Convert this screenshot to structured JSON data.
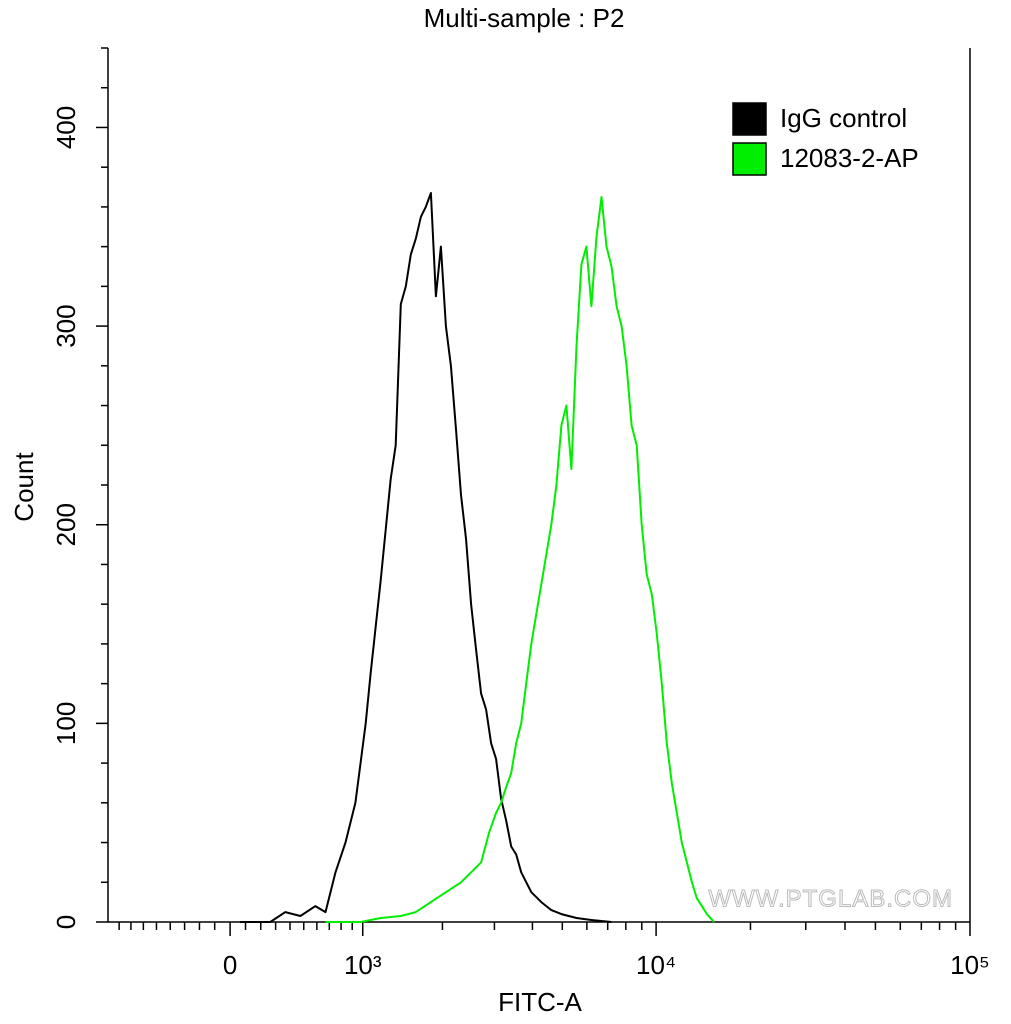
{
  "chart_data": {
    "type": "line",
    "title": "Multi-sample : P2",
    "xlabel": "FITC-A",
    "ylabel": "Count",
    "xscale": "biexponential",
    "xlim": [
      -900,
      100000
    ],
    "xticks": [
      0,
      {
        "value": 1000,
        "label": "10³"
      },
      {
        "value": 10000,
        "label": "10⁴"
      },
      {
        "value": 100000,
        "label": "10⁵"
      }
    ],
    "xminor_ticks": [
      -800,
      -700,
      -600,
      -500,
      -400,
      -300,
      -200,
      -100,
      100,
      200,
      300,
      400,
      500,
      600,
      700,
      800,
      900,
      2000,
      3000,
      4000,
      5000,
      6000,
      7000,
      8000,
      9000,
      20000,
      30000,
      40000,
      50000,
      60000,
      70000,
      80000,
      90000
    ],
    "ylim": [
      0,
      440
    ],
    "yticks": [
      0,
      100,
      200,
      300,
      400
    ],
    "yminor_ticks": [
      20,
      40,
      60,
      80,
      120,
      140,
      160,
      180,
      220,
      240,
      260,
      280,
      320,
      340,
      360,
      380,
      420,
      440
    ],
    "legend": "upper right",
    "watermark": "WWW.PTGLAB.COM",
    "series": [
      {
        "name": "IgG control",
        "color": "#000000",
        "x": [
          65,
          264,
          367,
          475,
          589,
          669,
          752,
          839,
          930,
          1029,
          1079,
          1185,
          1296,
          1355,
          1416,
          1478,
          1543,
          1609,
          1678,
          1748,
          1822,
          1898,
          1975,
          2056,
          2140,
          2227,
          2317,
          2410,
          2506,
          2605,
          2708,
          2814,
          2925,
          3039,
          3158,
          3281,
          3408,
          3540,
          3676,
          3965,
          4274,
          4608,
          4968,
          5555,
          6207,
          7200
        ],
        "values": [
          0,
          0,
          5,
          3,
          8,
          5,
          25,
          40,
          60,
          100,
          125,
          172,
          223,
          240,
          311,
          320,
          336,
          344,
          355,
          360,
          367,
          315,
          340,
          300,
          280,
          248,
          215,
          193,
          160,
          137,
          115,
          107,
          90,
          82,
          62,
          51,
          38,
          34,
          25,
          15,
          10,
          6,
          4,
          2,
          1,
          0
        ]
      },
      {
        "name": "12083-2-AP",
        "color": "#00ee00",
        "x": [
          669,
          979,
          1185,
          1416,
          1609,
          1822,
          2056,
          2317,
          2506,
          2708,
          2880,
          3039,
          3158,
          3281,
          3408,
          3540,
          3676,
          3817,
          3965,
          4117,
          4274,
          4438,
          4608,
          4785,
          4968,
          5155,
          5350,
          5555,
          5763,
          5981,
          6207,
          6442,
          6686,
          6939,
          7200,
          7475,
          7755,
          8047,
          8352,
          8667,
          8998,
          9333,
          9687,
          10049,
          10428,
          10817,
          11223,
          11647,
          12079,
          12539,
          13007,
          13492,
          14004,
          14525,
          15302
        ],
        "values": [
          0,
          0,
          2,
          3,
          5,
          10,
          15,
          20,
          25,
          30,
          45,
          55,
          60,
          68,
          75,
          90,
          100,
          120,
          140,
          155,
          170,
          185,
          200,
          220,
          250,
          260,
          228,
          290,
          331,
          340,
          310,
          345,
          365,
          340,
          330,
          310,
          300,
          280,
          250,
          240,
          200,
          175,
          165,
          145,
          120,
          90,
          70,
          55,
          40,
          30,
          20,
          12,
          8,
          4,
          0
        ]
      }
    ]
  }
}
